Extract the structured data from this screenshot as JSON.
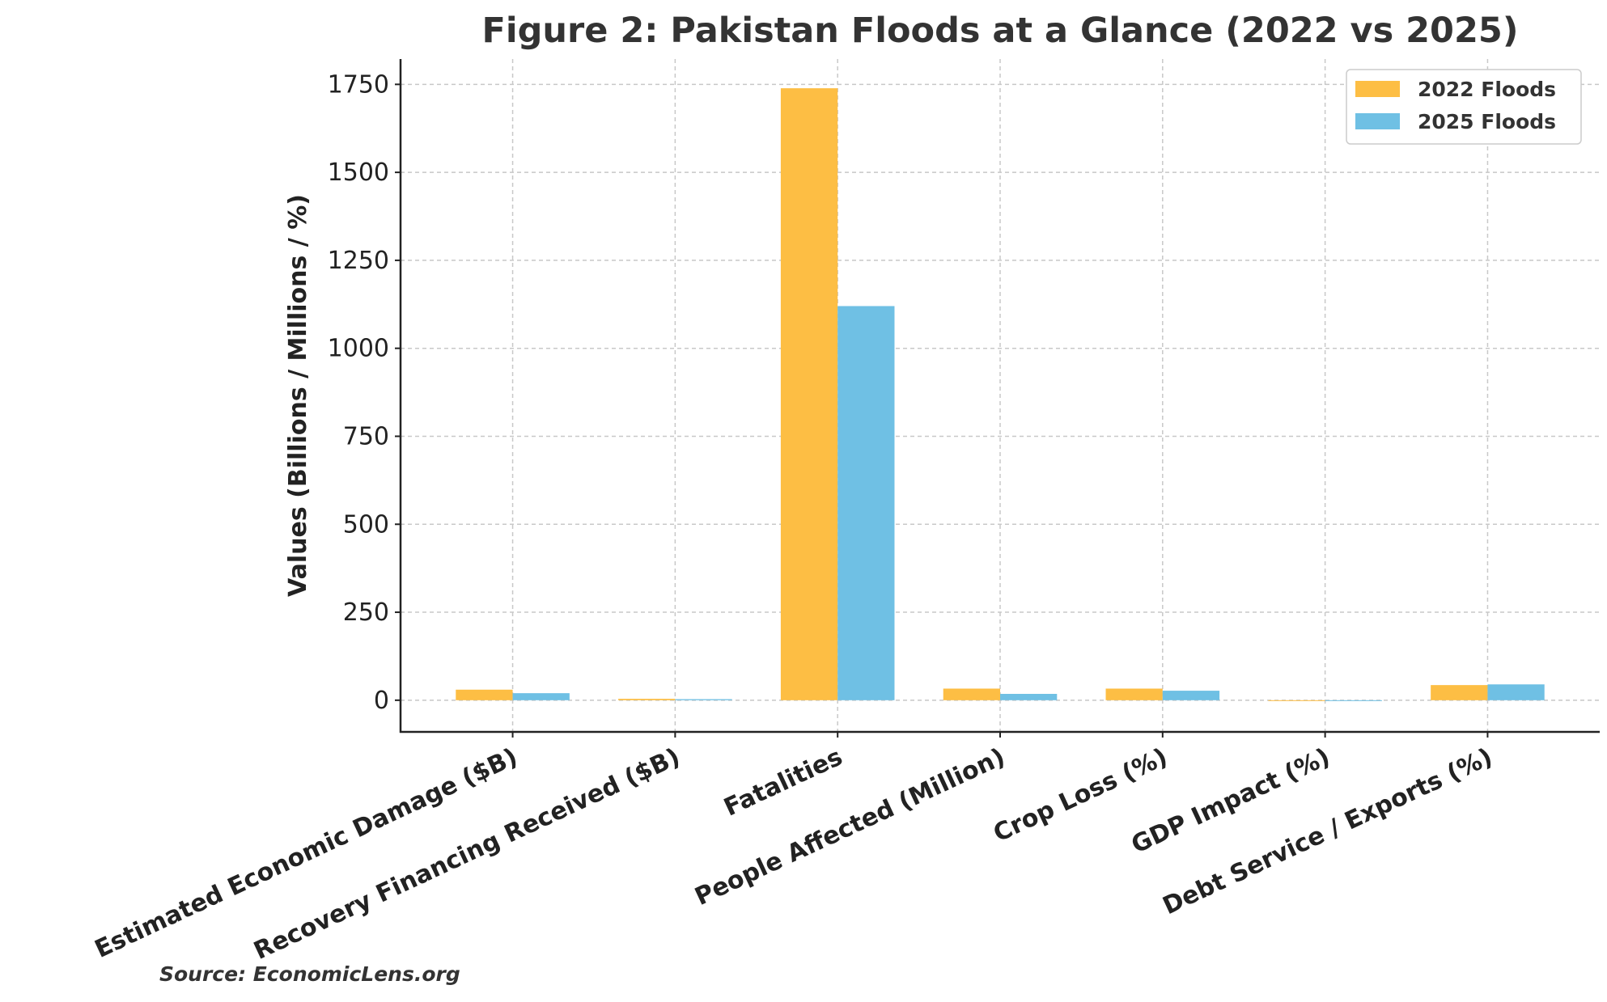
{
  "chart_data": {
    "type": "bar",
    "title": "Figure 2: Pakistan Floods at a Glance (2022 vs 2025)",
    "xlabel": "",
    "ylabel": "Values (Billions / Millions / %)",
    "categories": [
      "Estimated Economic Damage ($B)",
      "Recovery Financing Received ($B)",
      "Fatalities",
      "People Affected (Million)",
      "Crop Loss (%)",
      "GDP Impact (%)",
      "Debt Service / Exports (%)"
    ],
    "series": [
      {
        "name": "2022 Floods",
        "color": "#FDBE44",
        "values": [
          30,
          4,
          1739,
          33,
          33,
          -2,
          43
        ]
      },
      {
        "name": "2025 Floods",
        "color": "#6FC0E4",
        "values": [
          20,
          3,
          1120,
          18,
          27,
          -1,
          45
        ]
      }
    ],
    "ylim": [
      -90,
      1822
    ],
    "yticks": [
      0,
      250,
      500,
      750,
      1000,
      1250,
      1500,
      1750
    ],
    "ytick_labels": [
      "0",
      "250",
      "500",
      "750",
      "1000",
      "1250",
      "1500",
      "1750"
    ],
    "grid": true,
    "legend_placement": "top-right",
    "source": "Source: EconomicLens.org"
  }
}
